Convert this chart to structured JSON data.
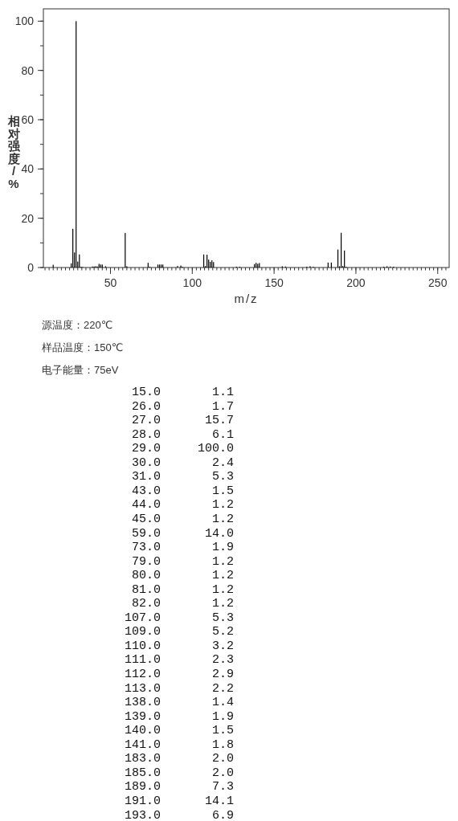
{
  "chart_data": [
    {
      "type": "bar",
      "xlabel": "m/z",
      "ylabel": "相对强度/%",
      "color": "#000000",
      "x": [
        15,
        26,
        27,
        28,
        29,
        30,
        31,
        32,
        33,
        39,
        40,
        41,
        42,
        43,
        44,
        45,
        47,
        59,
        60,
        73,
        74,
        79,
        80,
        81,
        82,
        91,
        93,
        94,
        107,
        108,
        109,
        110,
        111,
        112,
        113,
        127,
        129,
        138,
        139,
        140,
        141,
        155,
        157,
        170,
        172,
        174,
        183,
        185,
        189,
        190,
        191,
        192,
        193,
        194,
        217,
        219,
        221,
        223
      ],
      "values": [
        1.1,
        1.7,
        15.7,
        6.1,
        100.0,
        2.4,
        5.3,
        0.3,
        0.2,
        0.4,
        0.4,
        0.5,
        0.4,
        1.5,
        1.2,
        1.2,
        0.5,
        14.0,
        0.5,
        1.9,
        0.3,
        1.2,
        1.2,
        1.2,
        1.2,
        0.6,
        0.8,
        0.3,
        5.3,
        0.6,
        5.2,
        3.2,
        2.3,
        2.9,
        2.2,
        0.3,
        0.3,
        1.4,
        1.9,
        1.5,
        1.8,
        0.5,
        0.4,
        0.3,
        0.5,
        0.3,
        2.0,
        2.0,
        7.3,
        0.5,
        14.1,
        0.6,
        6.9,
        0.3,
        0.3,
        0.5,
        0.4,
        0.3
      ],
      "xlim": [
        9,
        257
      ],
      "xticks": [
        50,
        100,
        150,
        200,
        250
      ],
      "ylim": [
        0,
        105
      ],
      "yticks": [
        0,
        20,
        40,
        60,
        80,
        100
      ],
      "annotations": [
        "源温度：220℃",
        "样品温度：150℃",
        "电子能量：75eV"
      ]
    },
    {
      "type": "other",
      "annotations": [
        "15.0 1.1",
        "26.0 1.7",
        "27.0 15.7",
        "28.0 6.1",
        "29.0 100.0",
        "30.0 2.4",
        "31.0 5.3",
        "43.0 1.5",
        "44.0 1.2",
        "45.0 1.2",
        "59.0 14.0",
        "73.0 1.9",
        "79.0 1.2",
        "80.0 1.2",
        "81.0 1.2",
        "82.0 1.2",
        "107.0 5.3",
        "109.0 5.2",
        "110.0 3.2",
        "111.0 2.3",
        "112.0 2.9",
        "113.0 2.2",
        "138.0 1.4",
        "139.0 1.9",
        "140.0 1.5",
        "141.0 1.8",
        "183.0 2.0",
        "185.0 2.0",
        "189.0 7.3",
        "191.0 14.1",
        "193.0 6.9"
      ]
    }
  ]
}
